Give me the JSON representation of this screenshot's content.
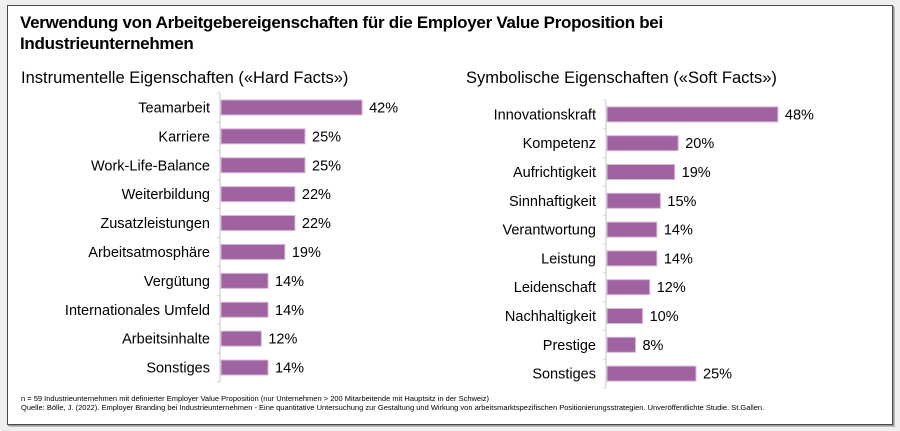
{
  "title": "Verwendung von Arbeitgebereigenschaften für die Employer Value Proposition bei Industrieunternehmen",
  "colors": {
    "bar": "#9e63a0",
    "bar_edge": "#d9b8da",
    "axis": "#d0d0d0"
  },
  "chart_data": [
    {
      "type": "bar",
      "orientation": "horizontal",
      "title": "Instrumentelle Eigenschaften («Hard Facts»)",
      "xlabel": "",
      "ylabel": "",
      "unit": "%",
      "grid": false,
      "legend": "none",
      "categories": [
        "Teamarbeit",
        "Karriere",
        "Work-Life-Balance",
        "Weiterbildung",
        "Zusatzleistungen",
        "Arbeitsatmosphäre",
        "Vergütung",
        "Internationales Umfeld",
        "Arbeitsinhalte",
        "Sonstiges"
      ],
      "values": [
        42,
        25,
        25,
        22,
        22,
        19,
        14,
        14,
        12,
        14
      ],
      "labels": [
        "42%",
        "25%",
        "25%",
        "22%",
        "22%",
        "19%",
        "14%",
        "14%",
        "12%",
        "14%"
      ]
    },
    {
      "type": "bar",
      "orientation": "horizontal",
      "title": "Symbolische Eigenschaften («Soft Facts»)",
      "xlabel": "",
      "ylabel": "",
      "unit": "%",
      "grid": false,
      "legend": "none",
      "categories": [
        "Innovationskraft",
        "Kompetenz",
        "Aufrichtigkeit",
        "Sinnhaftigkeit",
        "Verantwortung",
        "Leistung",
        "Leidenschaft",
        "Nachhaltigkeit",
        "Prestige",
        "Sonstiges"
      ],
      "values": [
        48,
        20,
        19,
        15,
        14,
        14,
        12,
        10,
        8,
        25
      ],
      "labels": [
        "48%",
        "20%",
        "19%",
        "15%",
        "14%",
        "14%",
        "12%",
        "10%",
        "8%",
        "25%"
      ]
    }
  ],
  "footnotes": {
    "sample": "n = 59 Industrieunternehmen mit definierter Employer Value Proposition (nur Unternehmen > 200 Mitarbeitende mit Hauptsitz in der Schweiz)",
    "source": "Quelle: Bölle, J. (2022). Employer Branding bei Industrieunternehmen - Eine quantitative Untersuchung zur Gestaltung und Wirkung von arbeitsmarktspezifischen Positionierungsstrategien. Unveröffentlichte Studie. St.Gallen."
  }
}
